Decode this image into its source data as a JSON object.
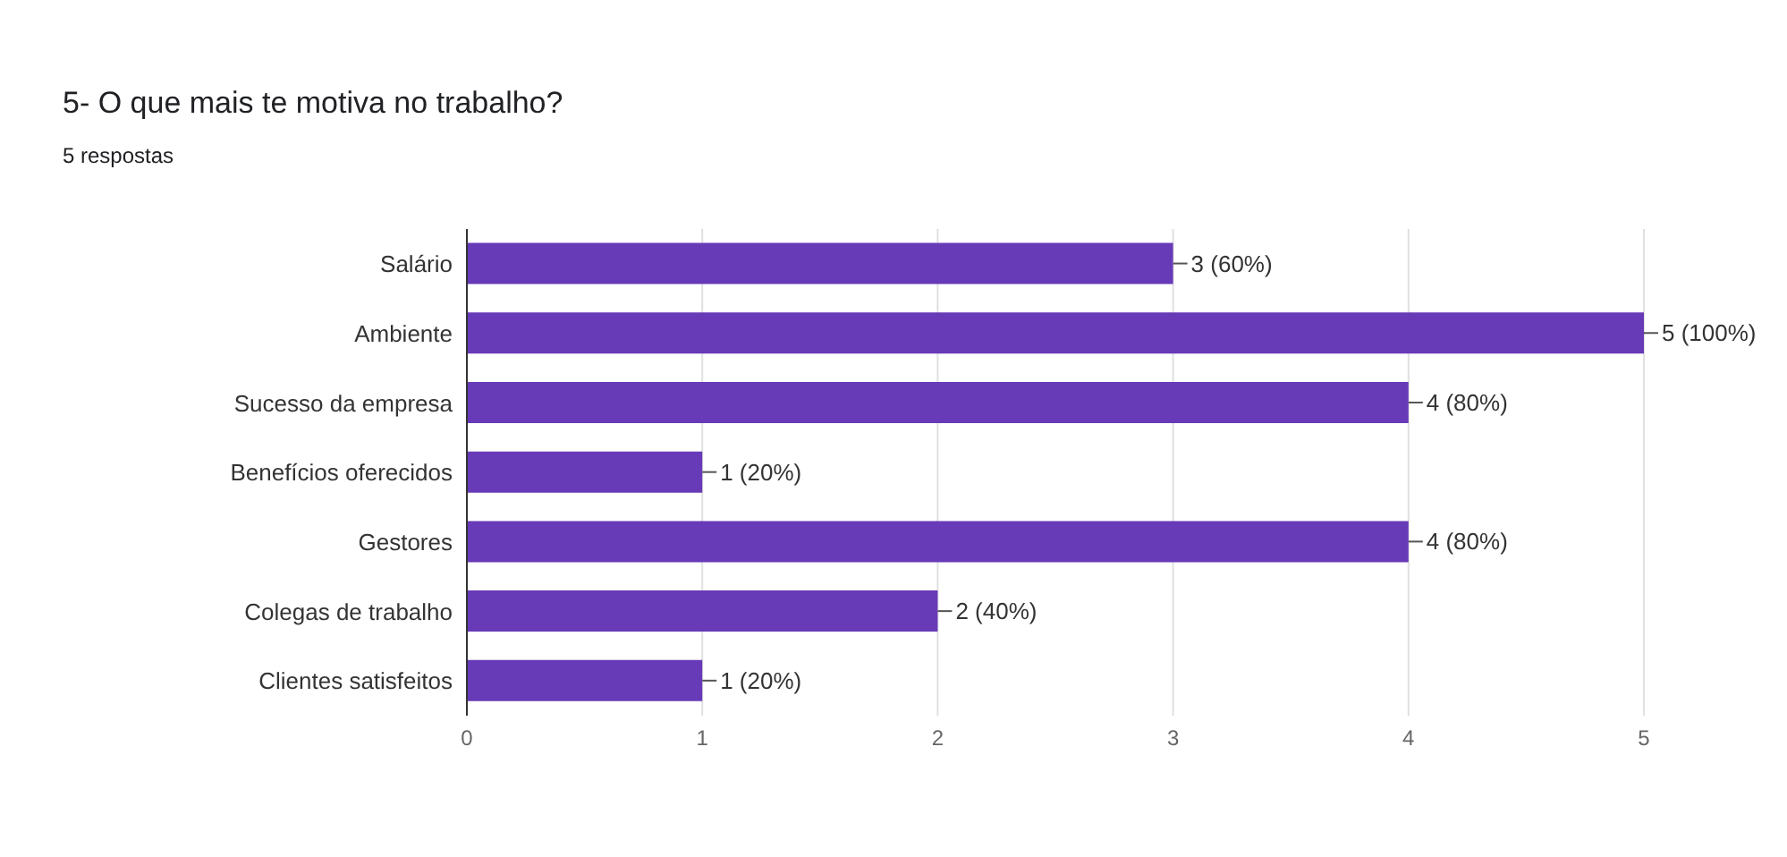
{
  "chart_data": {
    "type": "bar",
    "orientation": "horizontal",
    "title": "5- O que mais te motiva no trabalho?",
    "subtitle": "5 respostas",
    "categories": [
      "Salário",
      "Ambiente",
      "Sucesso da empresa",
      "Benefícios oferecidos",
      "Gestores",
      "Colegas de trabalho",
      "Clientes satisfeitos"
    ],
    "values": [
      3,
      5,
      4,
      1,
      4,
      2,
      1
    ],
    "value_labels": [
      "3 (60%)",
      "5 (100%)",
      "4 (80%)",
      "1 (20%)",
      "4 (80%)",
      "2 (40%)",
      "1 (20%)"
    ],
    "color": "#673ab7",
    "xlim": [
      0,
      5
    ],
    "xticks": [
      0,
      1,
      2,
      3,
      4,
      5
    ],
    "grid": "x"
  }
}
